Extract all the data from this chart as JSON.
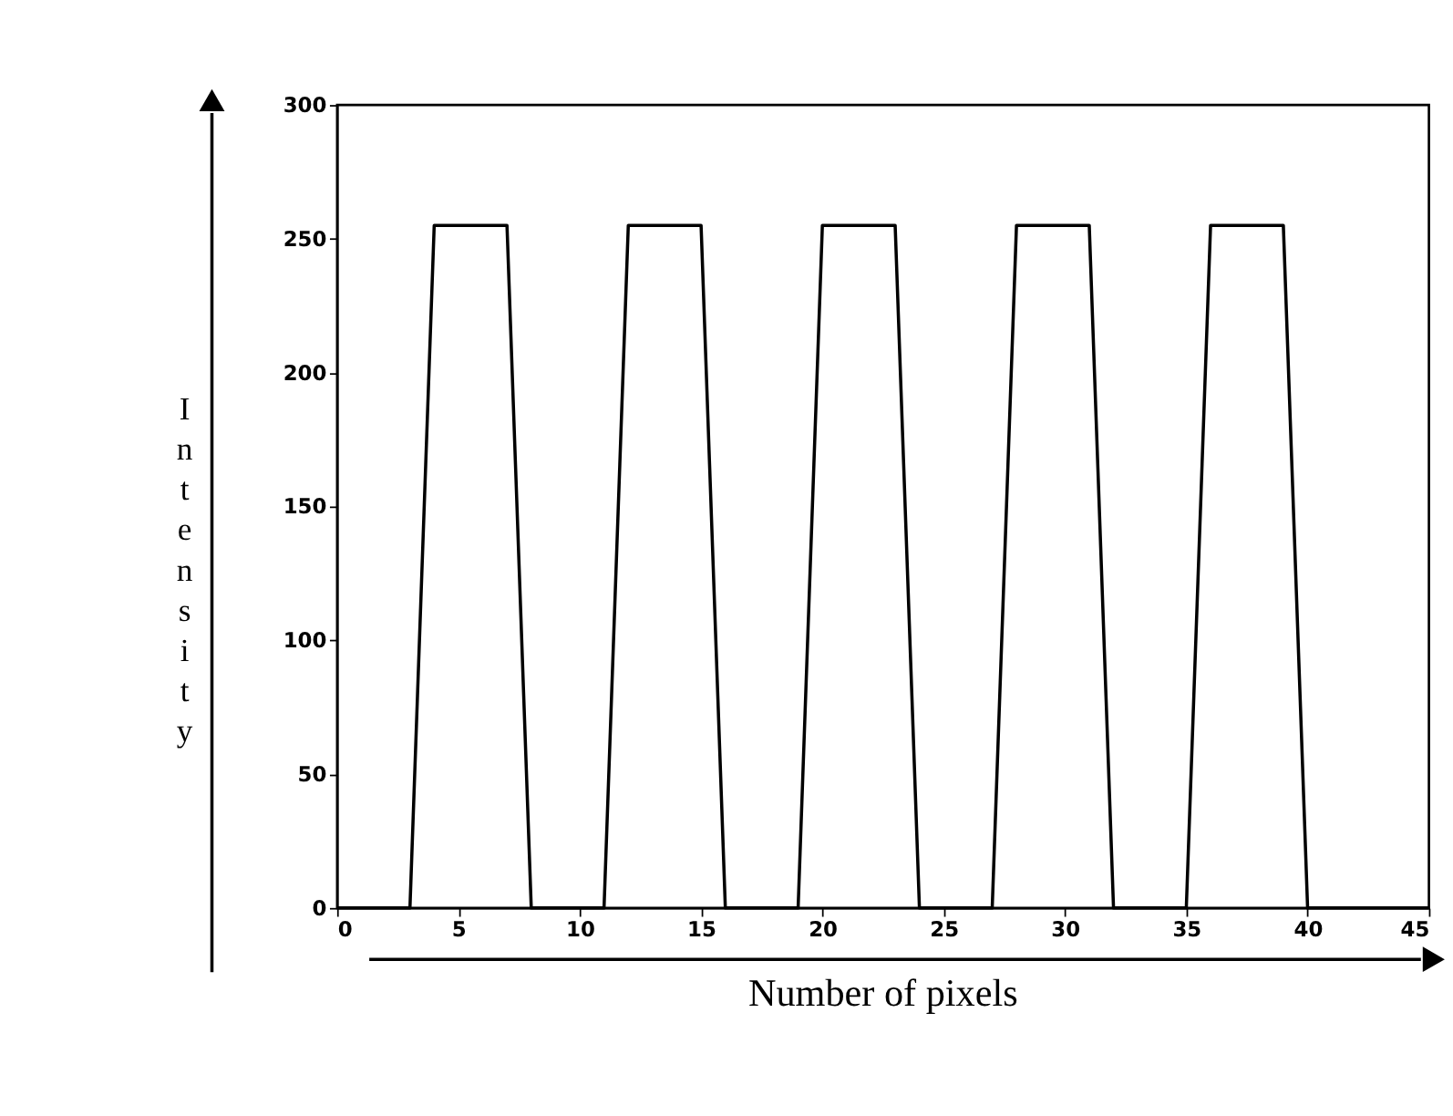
{
  "chart_data": {
    "type": "line",
    "xlabel": "Number of pixels",
    "ylabel": "Intensity",
    "x": [
      0,
      3,
      4,
      7,
      8,
      11,
      12,
      15,
      16,
      19,
      20,
      23,
      24,
      27,
      28,
      31,
      32,
      35,
      36,
      39,
      40,
      45
    ],
    "series": [
      {
        "color": "#000000",
        "values": [
          0,
          0,
          255,
          255,
          0,
          0,
          255,
          255,
          0,
          0,
          255,
          255,
          0,
          0,
          255,
          255,
          0,
          0,
          255,
          255,
          0,
          0
        ]
      }
    ],
    "xlim": [
      0,
      45
    ],
    "xticks": [
      0,
      5,
      10,
      15,
      20,
      25,
      30,
      35,
      40,
      45
    ],
    "ylim": [
      0,
      300
    ],
    "yticks": [
      0,
      50,
      100,
      150,
      200,
      250,
      300
    ],
    "grid": false,
    "marker": "none",
    "line_style": "solid"
  }
}
